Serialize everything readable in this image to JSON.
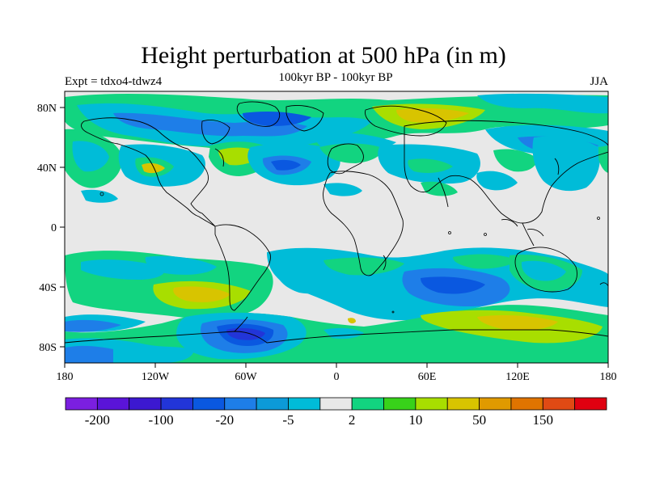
{
  "title": "Height perturbation at 500 hPa (in m)",
  "subtitle": "100kyr BP - 100kyr BP",
  "left_label": "Expt = tdxo4-tdwz4",
  "right_label": "JJA",
  "lat_ticks": [
    "80N",
    "40N",
    "0",
    "40S",
    "80S"
  ],
  "lon_ticks": [
    "180",
    "120W",
    "60W",
    "0",
    "60E",
    "120E",
    "180"
  ],
  "colorbar": {
    "colors": [
      "#7b1fe0",
      "#5a14d8",
      "#3c18d0",
      "#2235d8",
      "#0a58e0",
      "#1e7ee8",
      "#0c9ad8",
      "#00bcd8",
      "#e8e8e8",
      "#12d480",
      "#38d21a",
      "#a8de00",
      "#d8c400",
      "#e09a00",
      "#e07400",
      "#e04a14",
      "#e00010"
    ],
    "labels": [
      "-200",
      "-100",
      "-20",
      "-5",
      "2",
      "10",
      "50",
      "150"
    ]
  },
  "colors": {
    "background": "#e8e8e8",
    "ocean_blue_deep": "#2235d8",
    "cyan": "#00bcd8",
    "green": "#12d480",
    "yellow_green": "#a8de00"
  }
}
